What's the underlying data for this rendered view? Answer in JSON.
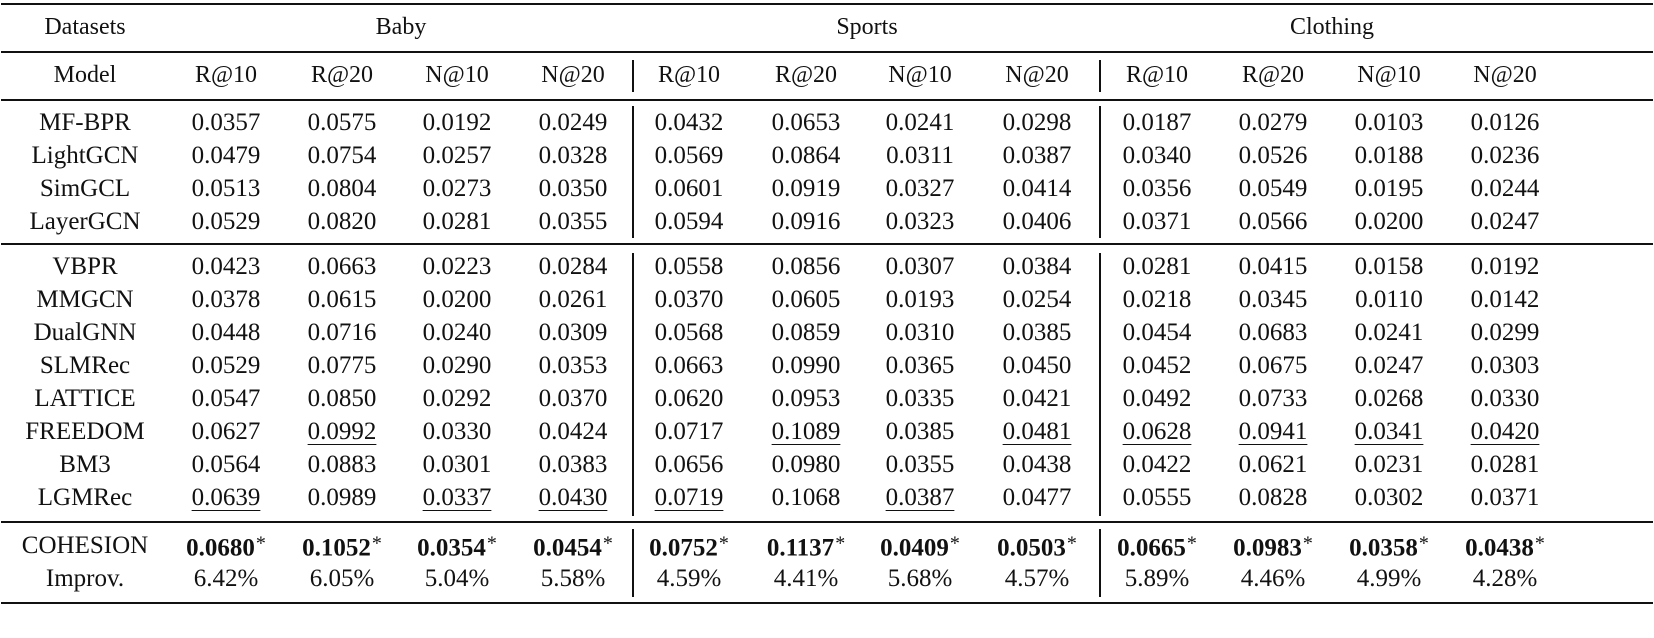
{
  "table": {
    "datasets_label": "Datasets",
    "model_label": "Model",
    "datasets": [
      "Baby",
      "Sports",
      "Clothing"
    ],
    "metrics": [
      "R@10",
      "R@20",
      "N@10",
      "N@20"
    ],
    "groups": [
      {
        "rows": [
          {
            "model": "MF-BPR",
            "values": [
              "0.0357",
              "0.0575",
              "0.0192",
              "0.0249",
              "0.0432",
              "0.0653",
              "0.0241",
              "0.0298",
              "0.0187",
              "0.0279",
              "0.0103",
              "0.0126"
            ],
            "underline": []
          },
          {
            "model": "LightGCN",
            "values": [
              "0.0479",
              "0.0754",
              "0.0257",
              "0.0328",
              "0.0569",
              "0.0864",
              "0.0311",
              "0.0387",
              "0.0340",
              "0.0526",
              "0.0188",
              "0.0236"
            ],
            "underline": []
          },
          {
            "model": "SimGCL",
            "values": [
              "0.0513",
              "0.0804",
              "0.0273",
              "0.0350",
              "0.0601",
              "0.0919",
              "0.0327",
              "0.0414",
              "0.0356",
              "0.0549",
              "0.0195",
              "0.0244"
            ],
            "underline": []
          },
          {
            "model": "LayerGCN",
            "values": [
              "0.0529",
              "0.0820",
              "0.0281",
              "0.0355",
              "0.0594",
              "0.0916",
              "0.0323",
              "0.0406",
              "0.0371",
              "0.0566",
              "0.0200",
              "0.0247"
            ],
            "underline": []
          }
        ]
      },
      {
        "rows": [
          {
            "model": "VBPR",
            "values": [
              "0.0423",
              "0.0663",
              "0.0223",
              "0.0284",
              "0.0558",
              "0.0856",
              "0.0307",
              "0.0384",
              "0.0281",
              "0.0415",
              "0.0158",
              "0.0192"
            ],
            "underline": []
          },
          {
            "model": "MMGCN",
            "values": [
              "0.0378",
              "0.0615",
              "0.0200",
              "0.0261",
              "0.0370",
              "0.0605",
              "0.0193",
              "0.0254",
              "0.0218",
              "0.0345",
              "0.0110",
              "0.0142"
            ],
            "underline": []
          },
          {
            "model": "DualGNN",
            "values": [
              "0.0448",
              "0.0716",
              "0.0240",
              "0.0309",
              "0.0568",
              "0.0859",
              "0.0310",
              "0.0385",
              "0.0454",
              "0.0683",
              "0.0241",
              "0.0299"
            ],
            "underline": []
          },
          {
            "model": "SLMRec",
            "values": [
              "0.0529",
              "0.0775",
              "0.0290",
              "0.0353",
              "0.0663",
              "0.0990",
              "0.0365",
              "0.0450",
              "0.0452",
              "0.0675",
              "0.0247",
              "0.0303"
            ],
            "underline": []
          },
          {
            "model": "LATTICE",
            "values": [
              "0.0547",
              "0.0850",
              "0.0292",
              "0.0370",
              "0.0620",
              "0.0953",
              "0.0335",
              "0.0421",
              "0.0492",
              "0.0733",
              "0.0268",
              "0.0330"
            ],
            "underline": []
          },
          {
            "model": "FREEDOM",
            "values": [
              "0.0627",
              "0.0992",
              "0.0330",
              "0.0424",
              "0.0717",
              "0.1089",
              "0.0385",
              "0.0481",
              "0.0628",
              "0.0941",
              "0.0341",
              "0.0420"
            ],
            "underline": [
              1,
              5,
              7,
              8,
              9,
              10,
              11
            ]
          },
          {
            "model": "BM3",
            "values": [
              "0.0564",
              "0.0883",
              "0.0301",
              "0.0383",
              "0.0656",
              "0.0980",
              "0.0355",
              "0.0438",
              "0.0422",
              "0.0621",
              "0.0231",
              "0.0281"
            ],
            "underline": []
          },
          {
            "model": "LGMRec",
            "values": [
              "0.0639",
              "0.0989",
              "0.0337",
              "0.0430",
              "0.0719",
              "0.1068",
              "0.0387",
              "0.0477",
              "0.0555",
              "0.0828",
              "0.0302",
              "0.0371"
            ],
            "underline": [
              0,
              2,
              3,
              4,
              6
            ]
          }
        ]
      },
      {
        "rows": [
          {
            "model": "COHESION",
            "values": [
              "0.0680",
              "0.1052",
              "0.0354",
              "0.0454",
              "0.0752",
              "0.1137",
              "0.0409",
              "0.0503",
              "0.0665",
              "0.0983",
              "0.0358",
              "0.0438"
            ],
            "bold": true,
            "marker": "*",
            "underline": []
          },
          {
            "model": "Improv.",
            "values": [
              "6.42%",
              "6.05%",
              "5.04%",
              "5.58%",
              "4.59%",
              "4.41%",
              "5.68%",
              "4.57%",
              "5.89%",
              "4.46%",
              "4.99%",
              "4.28%"
            ],
            "underline": []
          }
        ]
      }
    ]
  }
}
